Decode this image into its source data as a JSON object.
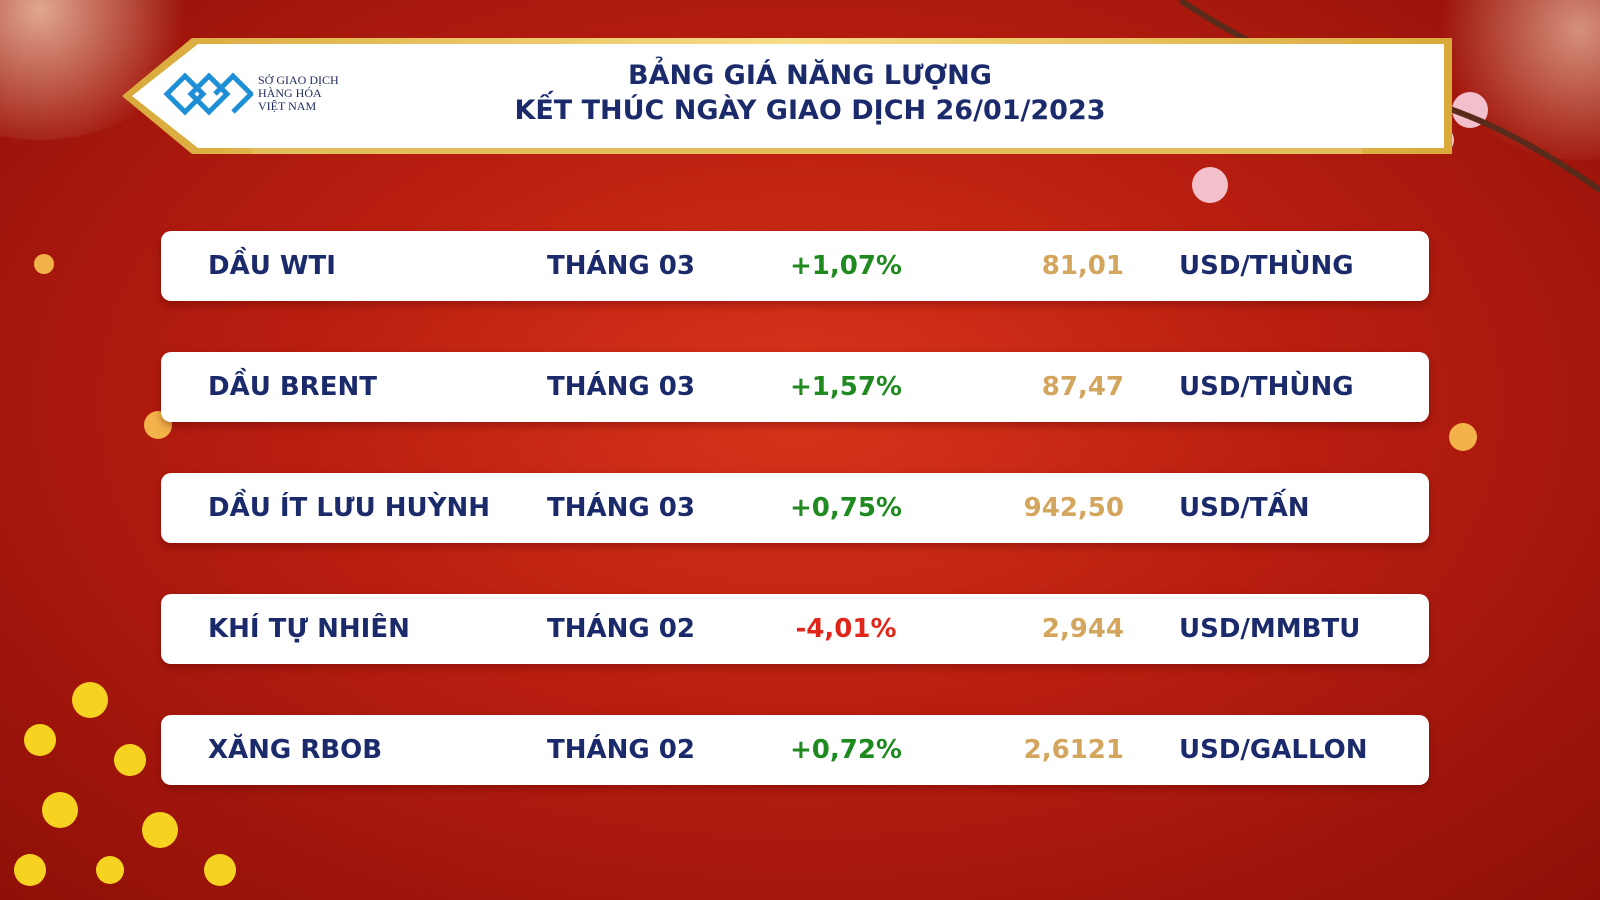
{
  "header": {
    "logo_lines": [
      "SỞ GIAO DỊCH",
      "HÀNG HÓA",
      "VIỆT NAM"
    ],
    "title_lines": [
      "BẢNG GIÁ NĂNG LƯỢNG",
      "KẾT THÚC NGÀY GIAO DỊCH 26/01/2023"
    ]
  },
  "table": {
    "rows": [
      [
        "DẦU WTI",
        "THÁNG 03",
        "+1,07%",
        "81,01",
        "USD/THÙNG"
      ],
      [
        "DẦU BRENT",
        "THÁNG 03",
        "+1,57%",
        "87,47",
        "USD/THÙNG"
      ],
      [
        "DẦU ÍT LƯU HUỲNH",
        "THÁNG 03",
        "+0,75%",
        "942,50",
        "USD/TẤN"
      ],
      [
        "KHÍ TỰ NHIÊN",
        "THÁNG 02",
        "-4,01%",
        "2,944",
        "USD/MMBTU"
      ],
      [
        "XĂNG RBOB",
        "THÁNG 02",
        "+0,72%",
        "2,6121",
        "USD/GALLON"
      ]
    ]
  }
}
